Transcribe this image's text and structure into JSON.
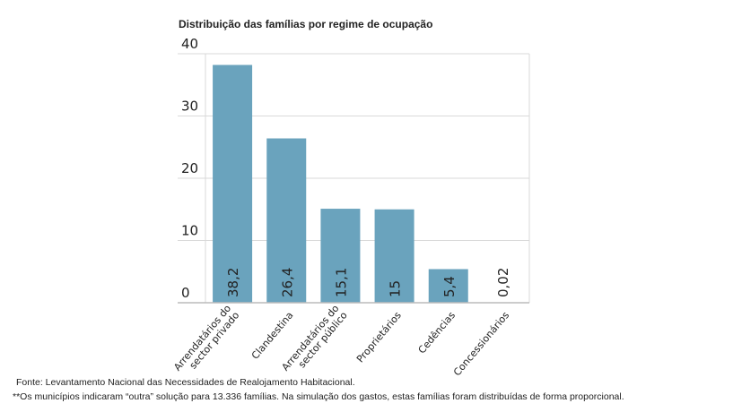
{
  "chart_data": {
    "type": "bar",
    "title": "Distribuição das famílias por regime de ocupação",
    "categories": [
      "Arrendatários do\nsector privado",
      "Clandestina",
      "Arrendatários do\nsector público",
      "Proprietários",
      "Cedências",
      "Concessionários"
    ],
    "values": [
      38.2,
      26.4,
      15.1,
      15,
      5.4,
      0.02
    ],
    "data_labels": [
      "38,2",
      "26,4",
      "15,1",
      "15",
      "5,4",
      "0,02"
    ],
    "xlabel": "",
    "ylabel": "",
    "ylim": [
      0,
      40
    ],
    "yticks": [
      0,
      10,
      20,
      30,
      40
    ],
    "grid": true,
    "bar_color": "#6aa3bd"
  },
  "notes": {
    "source": "Fonte: Levantamento Nacional das Necessidades de Realojamento Habitacional.",
    "footnote": "**Os municípios indicaram “outra” solução para 13.336 famílias. Na simulação dos gastos, estas famílias foram distribuídas de forma proporcional."
  }
}
